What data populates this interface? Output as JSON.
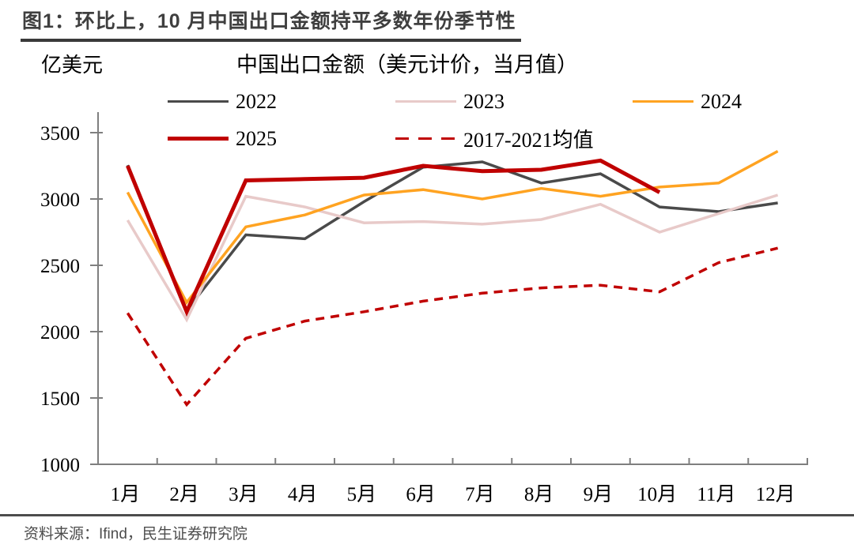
{
  "header": {
    "title": "图1：环比上，10 月中国出口金额持平多数年份季节性"
  },
  "footer": {
    "source": "资料来源：Ifind，民生证券研究院"
  },
  "chart_data": {
    "type": "line",
    "title": "中国出口金额（美元计价，当月值）",
    "unit_label": "亿美元",
    "categories": [
      "1月",
      "2月",
      "3月",
      "4月",
      "5月",
      "6月",
      "7月",
      "8月",
      "9月",
      "10月",
      "11月",
      "12月"
    ],
    "y_ticks": [
      1000,
      1500,
      2000,
      2500,
      3000,
      3500
    ],
    "ylim": [
      1000,
      3500
    ],
    "grid": false,
    "legend_position": "top",
    "axis_color": "#7f7f7f",
    "series": [
      {
        "name": "2022",
        "color": "#4a4a4a",
        "style": "solid",
        "width": 3.5,
        "values": [
          3255,
          2160,
          2730,
          2700,
          2980,
          3240,
          3280,
          3120,
          3190,
          2940,
          2905,
          2970
        ]
      },
      {
        "name": "2023",
        "color": "#e8cac9",
        "style": "solid",
        "width": 3.5,
        "values": [
          2840,
          2090,
          3020,
          2940,
          2820,
          2830,
          2810,
          2845,
          2960,
          2750,
          2890,
          3030
        ]
      },
      {
        "name": "2024",
        "color": "#ffa321",
        "style": "solid",
        "width": 3.5,
        "values": [
          3050,
          2220,
          2790,
          2880,
          3030,
          3070,
          3000,
          3080,
          3020,
          3090,
          3120,
          3360
        ]
      },
      {
        "name": "2025",
        "color": "#c00000",
        "style": "solid",
        "width": 5,
        "values": [
          3250,
          2150,
          3140,
          3150,
          3160,
          3250,
          3210,
          3220,
          3290,
          3050
        ]
      },
      {
        "name": "2017-2021均值",
        "color": "#c00000",
        "style": "dashed",
        "width": 3.5,
        "values": [
          2140,
          1450,
          1950,
          2080,
          2150,
          2230,
          2290,
          2330,
          2350,
          2300,
          2520,
          2630
        ]
      }
    ]
  }
}
